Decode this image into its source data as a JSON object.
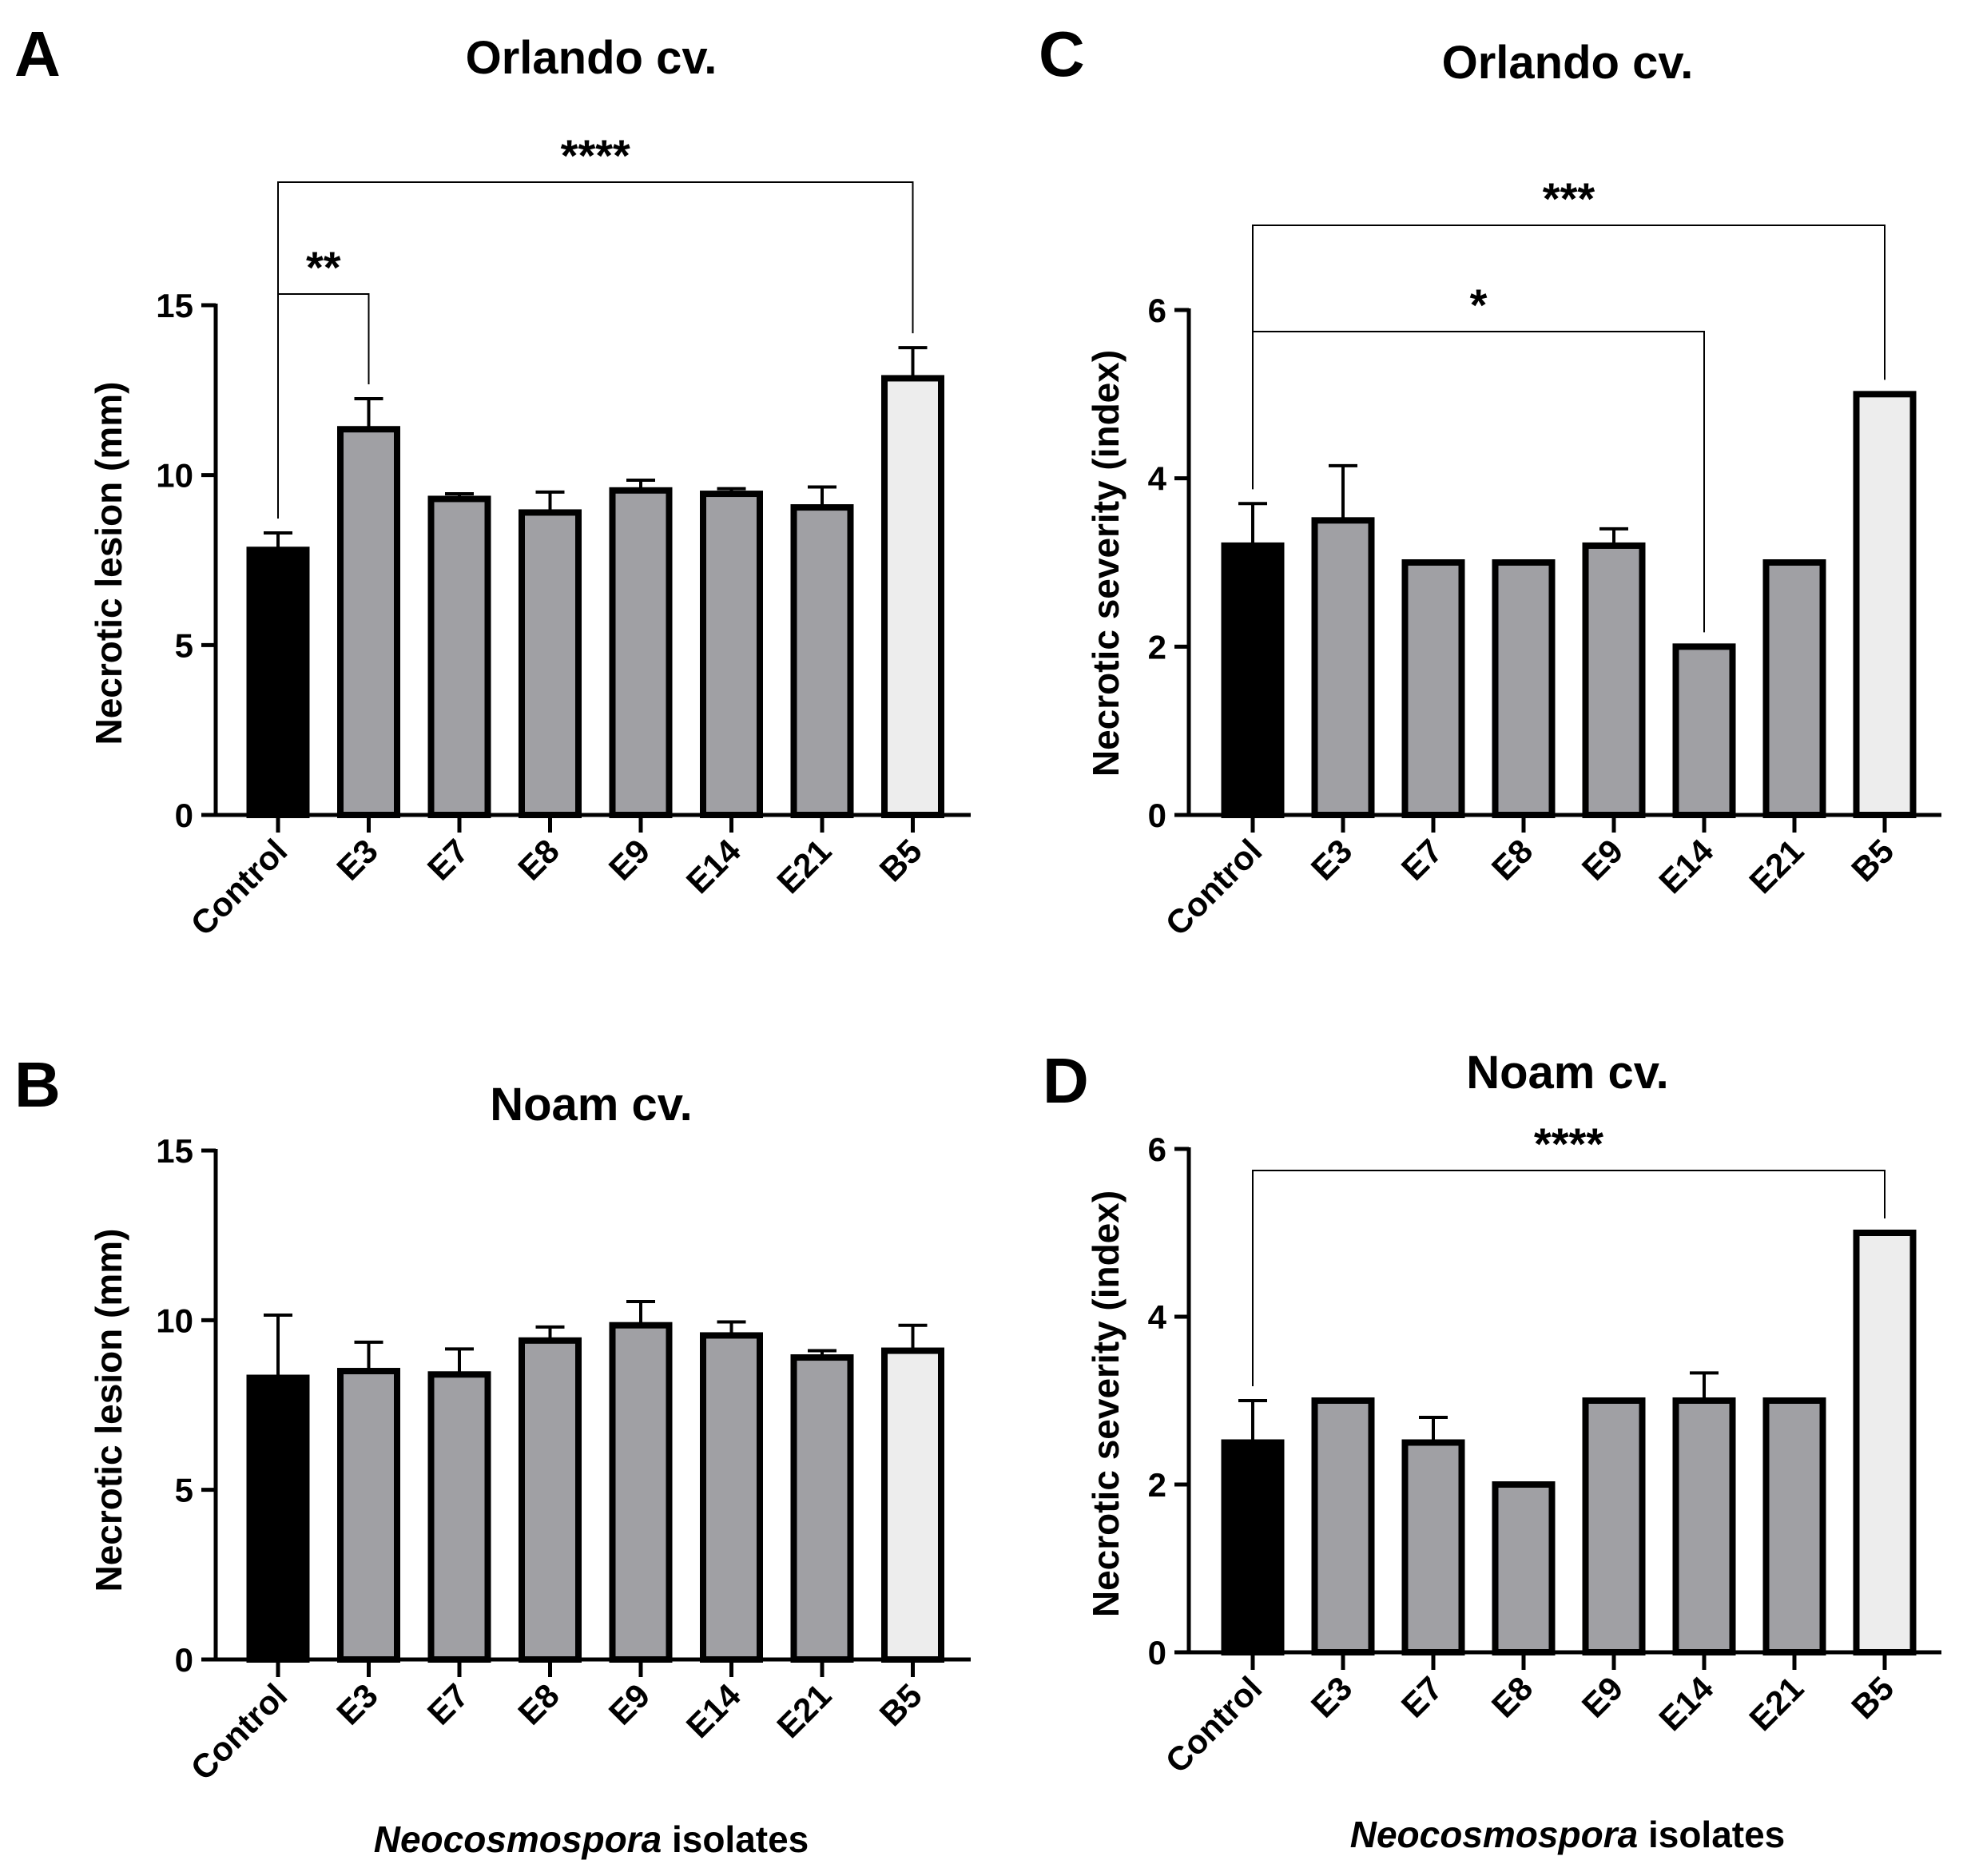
{
  "chart_data": [
    {
      "panel": "A",
      "type": "bar",
      "title": "Orlando cv.",
      "xlabel": "",
      "ylabel": "Necrotic lesion (mm)",
      "ylim": [
        0,
        15
      ],
      "yticks": [
        0,
        5,
        10,
        15
      ],
      "categories": [
        "Control",
        "E3",
        "E7",
        "E8",
        "E9",
        "E14",
        "E21",
        "B5"
      ],
      "values": [
        7.8,
        11.35,
        9.3,
        8.9,
        9.55,
        9.45,
        9.05,
        12.85
      ],
      "errors": [
        0.5,
        0.9,
        0.15,
        0.6,
        0.3,
        0.15,
        0.6,
        0.9
      ],
      "colors": [
        "#000000",
        "#a0a0a4",
        "#a0a0a4",
        "#a0a0a4",
        "#a0a0a4",
        "#a0a0a4",
        "#a0a0a4",
        "#ededed"
      ],
      "significance": [
        {
          "from": "Control",
          "to": "E3",
          "label": "**"
        },
        {
          "from": "Control",
          "to": "B5",
          "label": "****"
        }
      ]
    },
    {
      "panel": "B",
      "type": "bar",
      "title": "Noam cv.",
      "xlabel": "Neocosmospora isolates",
      "ylabel": "Necrotic lesion (mm)",
      "ylim": [
        0,
        15
      ],
      "yticks": [
        0,
        5,
        10,
        15
      ],
      "categories": [
        "Control",
        "E3",
        "E7",
        "E8",
        "E9",
        "E14",
        "E21",
        "B5"
      ],
      "values": [
        8.3,
        8.5,
        8.4,
        9.4,
        9.85,
        9.55,
        8.9,
        9.1
      ],
      "errors": [
        1.85,
        0.85,
        0.75,
        0.4,
        0.7,
        0.4,
        0.2,
        0.75
      ],
      "colors": [
        "#000000",
        "#a0a0a4",
        "#a0a0a4",
        "#a0a0a4",
        "#a0a0a4",
        "#a0a0a4",
        "#a0a0a4",
        "#ededed"
      ],
      "significance": []
    },
    {
      "panel": "C",
      "type": "bar",
      "title": "Orlando cv.",
      "xlabel": "",
      "ylabel": "Necrotic severity (index)",
      "ylim": [
        0,
        6
      ],
      "yticks": [
        0,
        2,
        4,
        6
      ],
      "categories": [
        "Control",
        "E3",
        "E7",
        "E8",
        "E9",
        "E14",
        "E21",
        "B5"
      ],
      "values": [
        3.2,
        3.5,
        3.0,
        3.0,
        3.2,
        2.0,
        3.0,
        5.0
      ],
      "errors": [
        0.5,
        0.65,
        0,
        0,
        0.2,
        0,
        0,
        0
      ],
      "colors": [
        "#000000",
        "#a0a0a4",
        "#a0a0a4",
        "#a0a0a4",
        "#a0a0a4",
        "#a0a0a4",
        "#a0a0a4",
        "#ededed"
      ],
      "significance": [
        {
          "from": "Control",
          "to": "E14",
          "label": "*"
        },
        {
          "from": "Control",
          "to": "B5",
          "label": "***"
        }
      ]
    },
    {
      "panel": "D",
      "type": "bar",
      "title": "Noam cv.",
      "xlabel": "Neocosmospora isolates",
      "ylabel": "Necrotic severity (index)",
      "ylim": [
        0,
        6
      ],
      "yticks": [
        0,
        2,
        4,
        6
      ],
      "categories": [
        "Control",
        "E3",
        "E7",
        "E8",
        "E9",
        "E14",
        "E21",
        "B5"
      ],
      "values": [
        2.5,
        3.0,
        2.5,
        2.0,
        3.0,
        3.0,
        3.0,
        5.0
      ],
      "errors": [
        0.5,
        0,
        0.3,
        0,
        0,
        0.33,
        0,
        0
      ],
      "colors": [
        "#000000",
        "#a0a0a4",
        "#a0a0a4",
        "#a0a0a4",
        "#a0a0a4",
        "#a0a0a4",
        "#a0a0a4",
        "#ededed"
      ],
      "significance": [
        {
          "from": "Control",
          "to": "B5",
          "label": "****"
        }
      ]
    }
  ],
  "x_caption": {
    "italic": "Neocosmospora",
    "rest": " isolates"
  }
}
